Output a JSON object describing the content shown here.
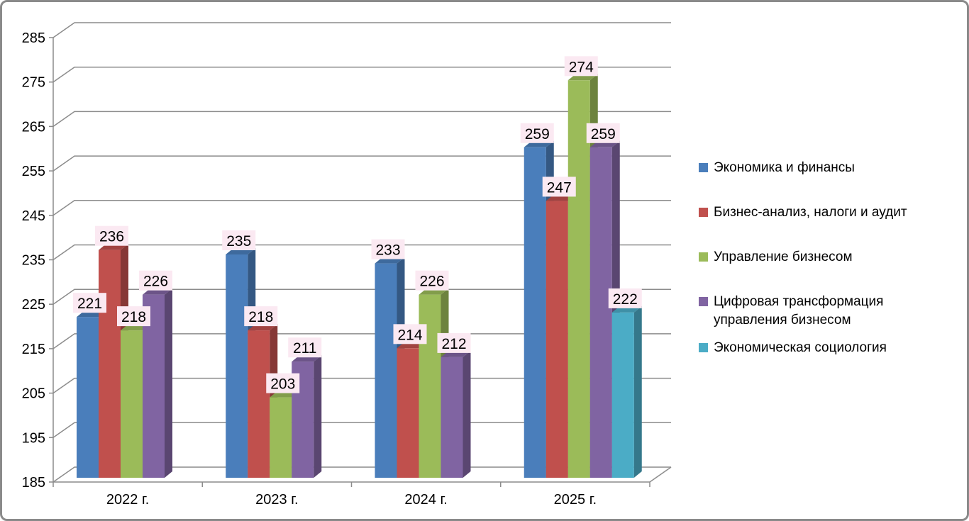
{
  "chart_data": {
    "type": "bar",
    "view": "3d-column",
    "title": "",
    "xlabel": "",
    "ylabel": "",
    "categories": [
      "2022 г.",
      "2023 г.",
      "2024 г.",
      "2025 г."
    ],
    "series": [
      {
        "name": "Экономика и финансы",
        "color": "#4a7ebb",
        "values": [
          221,
          235,
          233,
          259
        ]
      },
      {
        "name": "Бизнес-анализ, налоги и аудит",
        "color": "#c0504d",
        "values": [
          236,
          218,
          214,
          247
        ]
      },
      {
        "name": "Управление бизнесом",
        "color": "#9bbb59",
        "values": [
          218,
          203,
          226,
          274
        ]
      },
      {
        "name": "Цифровая трансформация управления бизнесом",
        "color": "#8064a2",
        "values": [
          226,
          211,
          212,
          259
        ]
      },
      {
        "name": "Экономическая социология",
        "color": "#4bacc6",
        "values": [
          null,
          null,
          null,
          222
        ]
      }
    ],
    "ylim": [
      185,
      285
    ],
    "yticks": [
      185,
      195,
      205,
      215,
      225,
      235,
      245,
      255,
      265,
      275,
      285
    ],
    "grid": true,
    "data_labels": true,
    "legend_position": "right"
  },
  "styles": {
    "gridline_color": "#8c8c8c",
    "axis_color": "#8c8c8c",
    "data_label_background": "#fbe9f2",
    "data_label_text": "#000000",
    "frame_border": "#8a8a8a",
    "background": "#ffffff",
    "text_color": "#000000"
  }
}
